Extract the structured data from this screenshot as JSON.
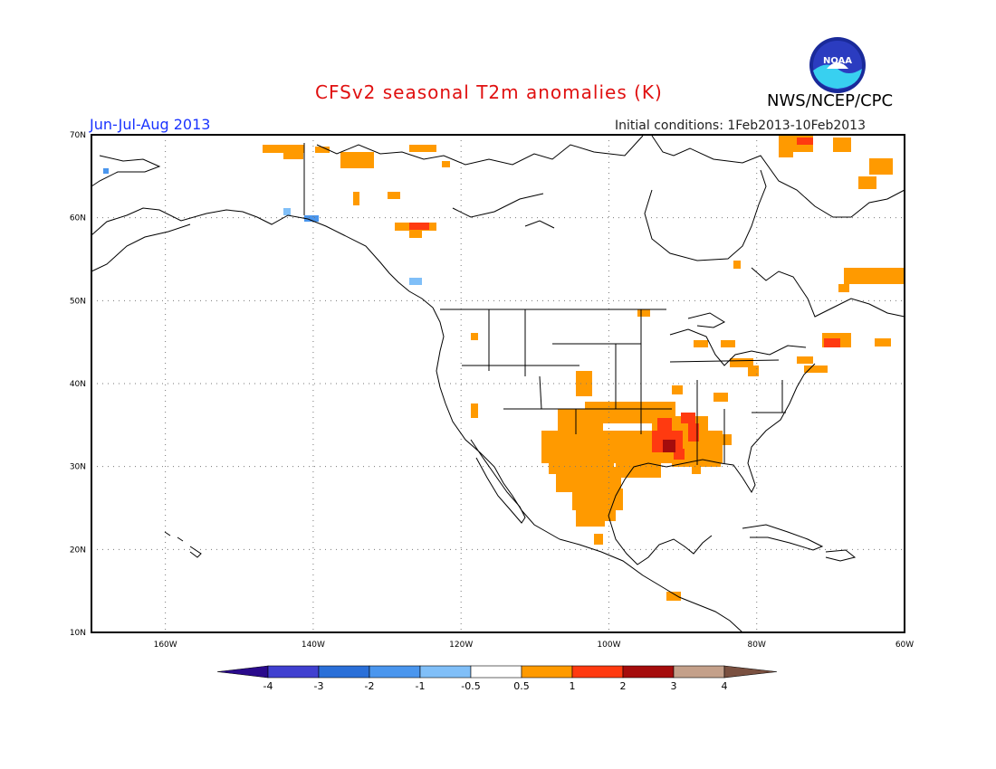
{
  "title": "CFSv2 seasonal T2m anomalies (K)",
  "agency": "NWS/NCEP/CPC",
  "season": "Jun-Jul-Aug 2013",
  "initial_conditions": "Initial conditions: 1Feb2013-10Feb2013",
  "logo_text": "NOAA",
  "map": {
    "lat_labels": [
      "70N",
      "60N",
      "50N",
      "40N",
      "30N",
      "20N",
      "10N"
    ],
    "lon_labels": [
      "160W",
      "140W",
      "120W",
      "100W",
      "80W",
      "60W"
    ],
    "lat_range": [
      10,
      70
    ],
    "lon_range": [
      -170,
      -60
    ]
  },
  "colorbar": {
    "labels": [
      "-4",
      "-3",
      "-2",
      "-1",
      "-0.5",
      "0.5",
      "1",
      "2",
      "3",
      "4"
    ],
    "colors": [
      "#2a0a8c",
      "#4040d0",
      "#2a6fd8",
      "#4a96ee",
      "#80bff8",
      "#ffffff",
      "#ff9a00",
      "#ff3a10",
      "#a50c0c",
      "#c4a08a",
      "#7a5040"
    ]
  },
  "anomaly_colors": {
    "orange": "#ff9a00",
    "red": "#ff3a10",
    "darkred": "#a50c0c",
    "lightblue": "#80bff8",
    "blue": "#4a96ee"
  }
}
